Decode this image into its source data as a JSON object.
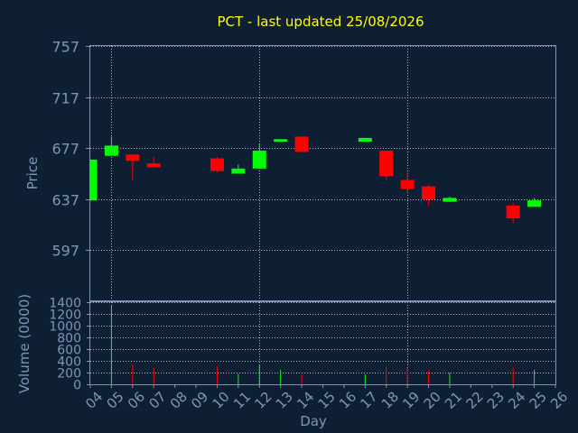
{
  "chart_data": [
    {
      "type": "candlestick",
      "title": "PCT - last updated 25/08/2026",
      "ylabel": "Price",
      "ylim": [
        557,
        757
      ],
      "yticks": [
        597,
        637,
        677,
        717,
        757
      ],
      "grid": true,
      "x_domain": [
        4,
        26
      ],
      "candles": [
        {
          "day": 4,
          "open": 636,
          "high": 668,
          "low": 636,
          "close": 668
        },
        {
          "day": 5,
          "open": 671,
          "high": 686,
          "low": 671,
          "close": 679
        },
        {
          "day": 6,
          "open": 672,
          "high": 672,
          "low": 652,
          "close": 667
        },
        {
          "day": 7,
          "open": 665,
          "high": 670,
          "low": 662,
          "close": 662
        },
        {
          "day": 10,
          "open": 669,
          "high": 670,
          "low": 658,
          "close": 659
        },
        {
          "day": 11,
          "open": 657,
          "high": 664,
          "low": 657,
          "close": 661
        },
        {
          "day": 12,
          "open": 661,
          "high": 680,
          "low": 661,
          "close": 675
        },
        {
          "day": 13,
          "open": 682,
          "high": 684,
          "low": 682,
          "close": 684
        },
        {
          "day": 14,
          "open": 686,
          "high": 686,
          "low": 674,
          "close": 674
        },
        {
          "day": 17,
          "open": 682,
          "high": 685,
          "low": 682,
          "close": 685
        },
        {
          "day": 18,
          "open": 675,
          "high": 675,
          "low": 652,
          "close": 655
        },
        {
          "day": 19,
          "open": 652,
          "high": 658,
          "low": 642,
          "close": 645
        },
        {
          "day": 20,
          "open": 647,
          "high": 648,
          "low": 632,
          "close": 637
        },
        {
          "day": 21,
          "open": 635,
          "high": 639,
          "low": 635,
          "close": 638
        },
        {
          "day": 24,
          "open": 632,
          "high": 634,
          "low": 618,
          "close": 622
        },
        {
          "day": 25,
          "open": 631,
          "high": 638,
          "low": 631,
          "close": 636
        }
      ],
      "up_color": "#00ff00",
      "down_color": "#ff0000"
    },
    {
      "type": "bar",
      "ylabel": "Volume (0000)",
      "xlabel": "Day",
      "ylim": [
        0,
        1400
      ],
      "yticks": [
        0,
        200,
        400,
        600,
        800,
        1000,
        1200,
        1400
      ],
      "x_ticks": [
        "04",
        "05",
        "06",
        "07",
        "08",
        "09",
        "10",
        "11",
        "12",
        "13",
        "14",
        "15",
        "16",
        "17",
        "18",
        "19",
        "20",
        "21",
        "22",
        "23",
        "24",
        "25",
        "26"
      ],
      "volumes": [
        {
          "day": 5,
          "value": 1340,
          "direction": "up"
        },
        {
          "day": 6,
          "value": 340,
          "direction": "down"
        },
        {
          "day": 7,
          "value": 280,
          "direction": "down"
        },
        {
          "day": 10,
          "value": 300,
          "direction": "down"
        },
        {
          "day": 11,
          "value": 180,
          "direction": "up"
        },
        {
          "day": 12,
          "value": 320,
          "direction": "up"
        },
        {
          "day": 13,
          "value": 250,
          "direction": "up"
        },
        {
          "day": 14,
          "value": 160,
          "direction": "down"
        },
        {
          "day": 17,
          "value": 170,
          "direction": "up"
        },
        {
          "day": 18,
          "value": 300,
          "direction": "down"
        },
        {
          "day": 19,
          "value": 300,
          "direction": "down"
        },
        {
          "day": 20,
          "value": 240,
          "direction": "down"
        },
        {
          "day": 21,
          "value": 200,
          "direction": "up"
        },
        {
          "day": 24,
          "value": 280,
          "direction": "down"
        },
        {
          "day": 25,
          "value": 250,
          "direction": "up"
        }
      ]
    }
  ],
  "colors": {
    "background": "#0f1f33",
    "axis": "#7b96b8",
    "grid": "#a8b8cc",
    "title": "#ffff00"
  }
}
